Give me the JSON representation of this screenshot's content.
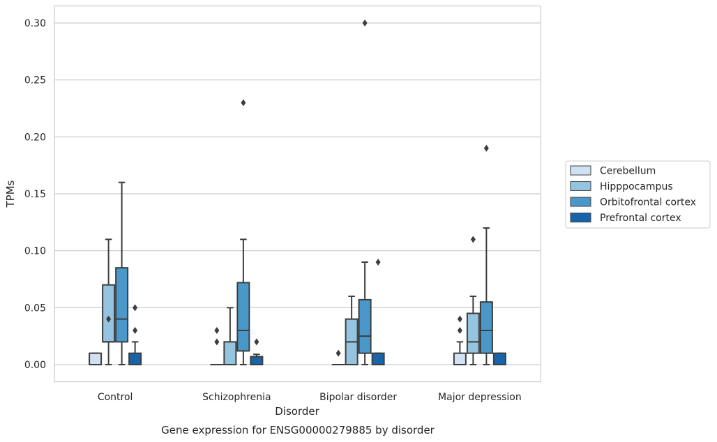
{
  "chart_data": {
    "type": "box",
    "title": "",
    "caption": "Gene expression for ENSG00000279885 by disorder",
    "xlabel": "Disorder",
    "ylabel": "TPMs",
    "ylim": [
      -0.015,
      0.315
    ],
    "yticks": [
      0.0,
      0.05,
      0.1,
      0.15,
      0.2,
      0.25,
      0.3
    ],
    "ytick_labels": [
      "0.00",
      "0.05",
      "0.10",
      "0.15",
      "0.20",
      "0.25",
      "0.30"
    ],
    "grid": "horizontal",
    "legend_position": "right",
    "categories": [
      "Control",
      "Schizophrenia",
      "Bipolar disorder",
      "Major depression"
    ],
    "series": [
      {
        "name": "Cerebellum",
        "color": "#d0e1f2",
        "boxes": [
          {
            "whislo": 0.0,
            "q1": 0.0,
            "med": 0.0,
            "q3": 0.01,
            "whishi": 0.01,
            "fliers": []
          },
          {
            "whislo": 0.0,
            "q1": 0.0,
            "med": 0.0,
            "q3": 0.0,
            "whishi": 0.0,
            "fliers": [
              0.02,
              0.03
            ]
          },
          {
            "whislo": 0.0,
            "q1": 0.0,
            "med": 0.0,
            "q3": 0.0,
            "whishi": 0.0,
            "fliers": [
              0.01
            ]
          },
          {
            "whislo": 0.0,
            "q1": 0.0,
            "med": 0.0,
            "q3": 0.01,
            "whishi": 0.02,
            "fliers": [
              0.03,
              0.04
            ]
          }
        ]
      },
      {
        "name": "Hipppocampus",
        "color": "#94c4df",
        "boxes": [
          {
            "whislo": 0.0,
            "q1": 0.02,
            "med": 0.02,
            "q3": 0.07,
            "whishi": 0.11,
            "fliers": [
              0.04
            ]
          },
          {
            "whislo": 0.0,
            "q1": 0.0,
            "med": 0.0,
            "q3": 0.02,
            "whishi": 0.05,
            "fliers": []
          },
          {
            "whislo": 0.0,
            "q1": 0.0,
            "med": 0.02,
            "q3": 0.04,
            "whishi": 0.06,
            "fliers": []
          },
          {
            "whislo": 0.0,
            "q1": 0.01,
            "med": 0.02,
            "q3": 0.045,
            "whishi": 0.06,
            "fliers": [
              0.11
            ]
          }
        ]
      },
      {
        "name": "Orbitofrontal cortex",
        "color": "#4a98c9",
        "boxes": [
          {
            "whislo": 0.0,
            "q1": 0.02,
            "med": 0.04,
            "q3": 0.085,
            "whishi": 0.16,
            "fliers": []
          },
          {
            "whislo": 0.0,
            "q1": 0.012,
            "med": 0.03,
            "q3": 0.072,
            "whishi": 0.11,
            "fliers": [
              0.23
            ]
          },
          {
            "whislo": 0.0,
            "q1": 0.01,
            "med": 0.025,
            "q3": 0.057,
            "whishi": 0.09,
            "fliers": [
              0.3
            ]
          },
          {
            "whislo": 0.0,
            "q1": 0.01,
            "med": 0.03,
            "q3": 0.055,
            "whishi": 0.12,
            "fliers": [
              0.19
            ]
          }
        ]
      },
      {
        "name": "Prefrontal cortex",
        "color": "#1764ab",
        "boxes": [
          {
            "whislo": 0.0,
            "q1": 0.0,
            "med": 0.0,
            "q3": 0.01,
            "whishi": 0.02,
            "fliers": [
              0.03,
              0.05
            ]
          },
          {
            "whislo": 0.0,
            "q1": 0.0,
            "med": 0.0,
            "q3": 0.007,
            "whishi": 0.009,
            "fliers": [
              0.02
            ]
          },
          {
            "whislo": 0.0,
            "q1": 0.0,
            "med": 0.0,
            "q3": 0.01,
            "whishi": 0.01,
            "fliers": [
              0.09
            ]
          },
          {
            "whislo": 0.0,
            "q1": 0.0,
            "med": 0.0,
            "q3": 0.01,
            "whishi": 0.01,
            "fliers": []
          }
        ]
      }
    ]
  }
}
